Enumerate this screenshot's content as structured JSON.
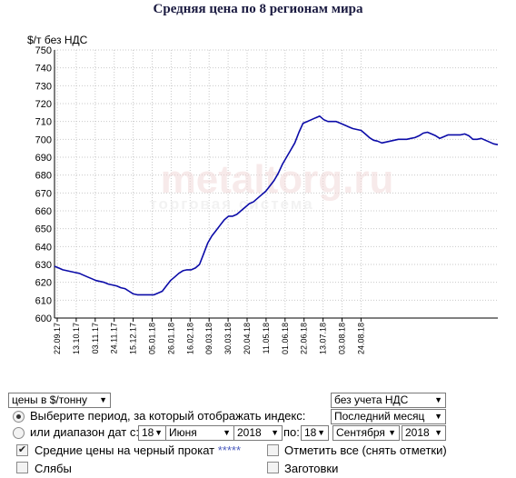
{
  "chart_data": {
    "type": "line",
    "title": "Средняя цена по 8 регионам мира",
    "ylabel": "$/т без НДС",
    "xlabel": "",
    "ylim": [
      600,
      750
    ],
    "y_ticks": [
      600,
      610,
      620,
      630,
      640,
      650,
      660,
      670,
      680,
      690,
      700,
      710,
      720,
      730,
      740,
      750
    ],
    "x_tick_labels": [
      "22.09.17",
      "13.10.17",
      "03.11.17",
      "24.11.17",
      "15.12.17",
      "05.01.18",
      "26.01.18",
      "16.02.18",
      "09.03.18",
      "30.03.18",
      "20.04.18",
      "11.05.18",
      "01.06.18",
      "22.06.18",
      "13.07.18",
      "03.08.18",
      "24.08.18"
    ],
    "grid": true,
    "line_color": "#0b0ba8",
    "series": [
      {
        "values": [
          629,
          628,
          627,
          626.5,
          626,
          625.5,
          625,
          624,
          623,
          622,
          621,
          620.5,
          620,
          619,
          618.5,
          618,
          617,
          616.5,
          615,
          613.5,
          613,
          613,
          613,
          613,
          613,
          614,
          615,
          618,
          621,
          623,
          625,
          626.5,
          627,
          627,
          628,
          630,
          636,
          642,
          646,
          649,
          652,
          655,
          657,
          657,
          658,
          660,
          662,
          664,
          665,
          667,
          669,
          671,
          674,
          677,
          681,
          686,
          690,
          694,
          698,
          704,
          709,
          710,
          711,
          712,
          713,
          711,
          710,
          710,
          710,
          709,
          708,
          707,
          706,
          705.5,
          705,
          703,
          701,
          699.5,
          699,
          698,
          698.5,
          699,
          699.5,
          700,
          700,
          700,
          700.5,
          701,
          702,
          703.5,
          704,
          703,
          702,
          700.5,
          701.5,
          702.5,
          702.5,
          702.5,
          702.5,
          703,
          702,
          700,
          700,
          700.5,
          699.5,
          698.5,
          697.5,
          697
        ]
      }
    ]
  },
  "watermark": {
    "brand": "metaltorg.ru",
    "tagline": "торговая система"
  },
  "controls": {
    "units_select": "цены в $/тонну",
    "vat_select": "без учета НДС",
    "period_label": "Выберите период, за который отображать индекс:",
    "period_select": "Последний месяц",
    "range_label": "или диапазон дат с:",
    "from_day": "18",
    "from_month": "Июня",
    "from_year": "2018",
    "to_label": "по:",
    "to_day": "18",
    "to_month": "Сентября",
    "to_year": "2018",
    "check_black_label": "Средние цены на черный прокат",
    "check_black_stars": "*****",
    "check_all_label": "Отметить все (снять отметки)",
    "check_slabs_label": "Слябы",
    "check_billets_label": "Заготовки",
    "check_mark": "✔"
  }
}
